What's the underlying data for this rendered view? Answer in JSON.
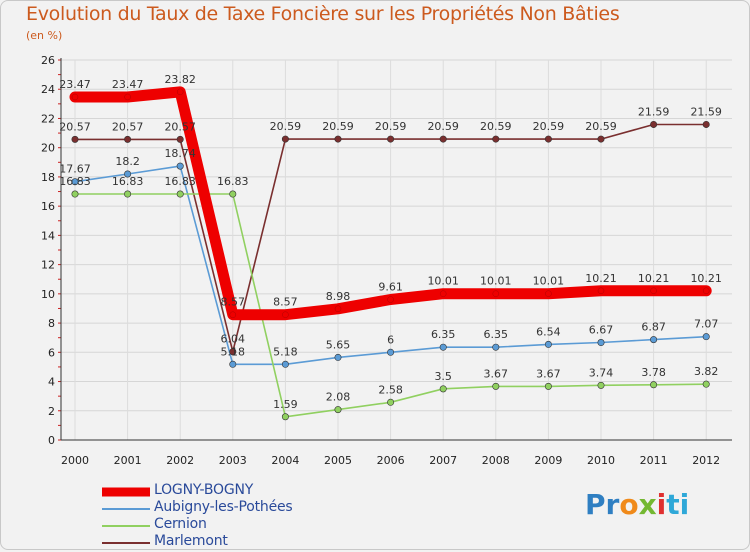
{
  "title": "Evolution du Taux de Taxe Foncière sur les Propriétés Non Bâties",
  "unit_label": "(en %)",
  "logo": {
    "text": "Proxiti",
    "parts": [
      "Pr",
      "o",
      "x",
      "i",
      "ti"
    ]
  },
  "chart_data": {
    "type": "line",
    "title": "Evolution du Taux de Taxe Foncière sur les Propriétés Non Bâties",
    "ylabel": "(en %)",
    "xlabel": "",
    "ylim": [
      0,
      26
    ],
    "yticks": [
      0,
      2,
      4,
      6,
      8,
      10,
      12,
      14,
      16,
      18,
      20,
      22,
      24,
      26
    ],
    "grid": true,
    "categories": [
      "2000",
      "2001",
      "2002",
      "2003",
      "2004",
      "2005",
      "2006",
      "2007",
      "2008",
      "2009",
      "2010",
      "2011",
      "2012"
    ],
    "series": [
      {
        "name": "LOGNY-BOGNY",
        "color": "#ee0000",
        "values": [
          23.47,
          23.47,
          23.82,
          8.57,
          8.57,
          8.98,
          9.61,
          10.01,
          10.01,
          10.01,
          10.21,
          10.21,
          10.21
        ],
        "labels": [
          "23.47",
          "23.47",
          "23.82",
          "8.57",
          "8.57",
          "8.98",
          "9.61",
          "10.01",
          "10.01",
          "10.01",
          "10.21",
          "10.21",
          "10.21"
        ]
      },
      {
        "name": "Aubigny-les-Pothées",
        "color": "#5b9bd5",
        "values": [
          17.67,
          18.2,
          18.74,
          5.18,
          5.18,
          5.65,
          6,
          6.35,
          6.35,
          6.54,
          6.67,
          6.87,
          7.07
        ],
        "labels": [
          "17.67",
          "18.2",
          "18.74",
          "5.18",
          "5.18",
          "5.65",
          "6",
          "6.35",
          "6.35",
          "6.54",
          "6.67",
          "6.87",
          "7.07"
        ]
      },
      {
        "name": "Cernion",
        "color": "#90d060",
        "values": [
          16.83,
          16.83,
          16.83,
          16.83,
          1.59,
          2.08,
          2.58,
          3.5,
          3.67,
          3.67,
          3.74,
          3.78,
          3.82
        ],
        "labels": [
          "16.83",
          "16.83",
          "16.83",
          "16.83",
          "1.59",
          "2.08",
          "2.58",
          "3.5",
          "3.67",
          "3.67",
          "3.74",
          "3.78",
          "3.82"
        ]
      },
      {
        "name": "Marlemont",
        "color": "#7a2f2f",
        "values": [
          20.57,
          20.57,
          20.57,
          6.04,
          20.59,
          20.59,
          20.59,
          20.59,
          20.59,
          20.59,
          20.59,
          21.59,
          21.59
        ],
        "labels": [
          "20.57",
          "20.57",
          "20.57",
          "6.04",
          "20.59",
          "20.59",
          "20.59",
          "20.59",
          "20.59",
          "20.59",
          "20.59",
          "21.59",
          "21.59"
        ]
      }
    ],
    "legend_position": "bottom-left"
  }
}
